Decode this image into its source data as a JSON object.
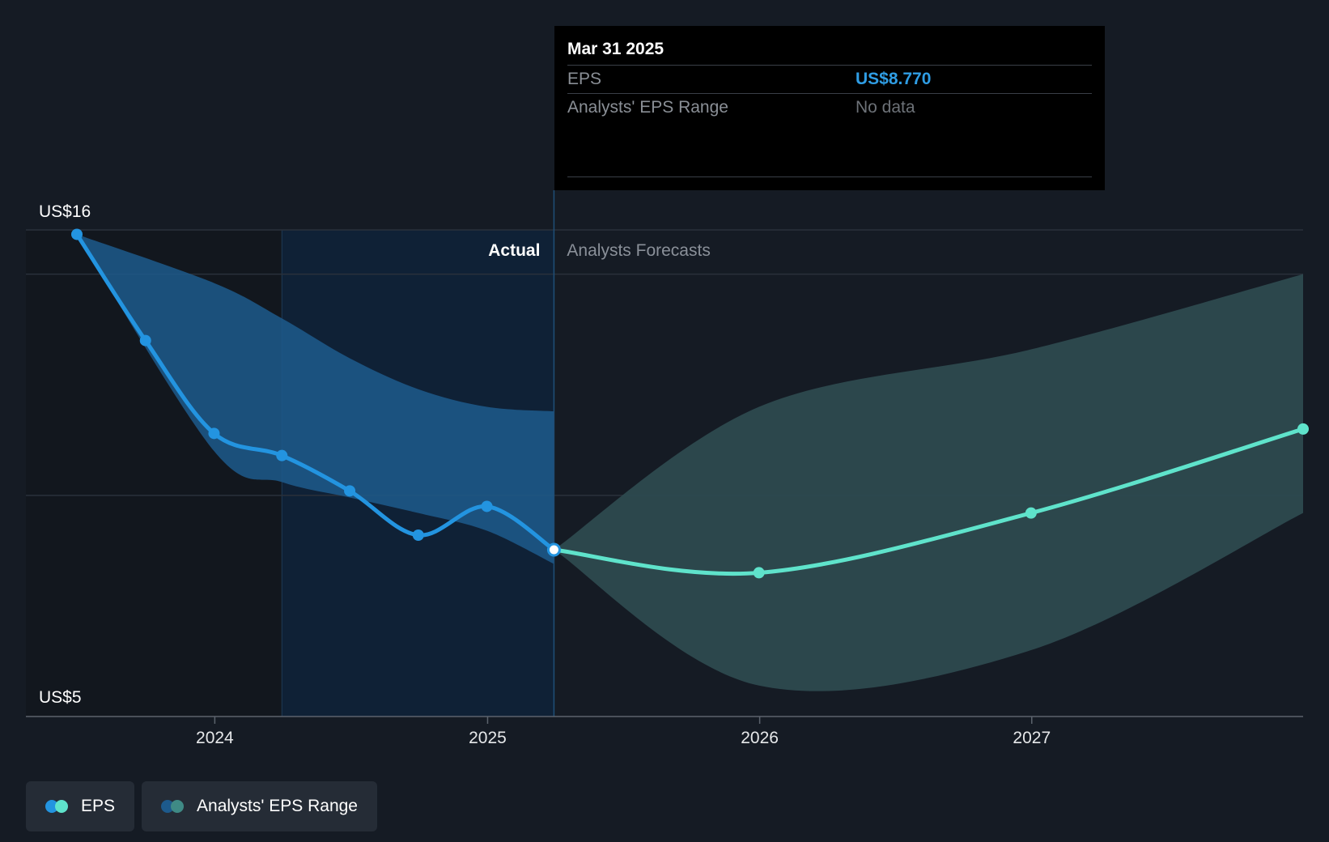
{
  "tooltip": {
    "date": "Mar 31 2025",
    "eps_label": "EPS",
    "eps_value": "US$8.770",
    "range_label": "Analysts' EPS Range",
    "range_value": "No data"
  },
  "legend": {
    "eps_label": "EPS",
    "range_label": "Analysts' EPS Range"
  },
  "colors": {
    "background": "#151b24",
    "eps_actual": "#2394e0",
    "eps_forecast": "#5fe3cb",
    "range_actual": "#1d5a8c",
    "range_forecast": "#2d4a4f"
  },
  "chart_data": {
    "type": "line",
    "y_tick_labels": [
      "US$16",
      "US$5"
    ],
    "ylim": [
      5,
      16
    ],
    "x_tick_labels": [
      "2024",
      "2025",
      "2026",
      "2027"
    ],
    "xlim": [
      "2023-06-30",
      "2027-12-31"
    ],
    "region_labels": {
      "actual": "Actual",
      "forecast": "Analysts Forecasts"
    },
    "highlight_start": "2024-03-31",
    "forecast_start": "2025-03-31",
    "series": [
      {
        "name": "EPS",
        "segment": "actual",
        "x": [
          "2023-06-30",
          "2023-09-30",
          "2023-12-31",
          "2024-03-31",
          "2024-06-30",
          "2024-09-30",
          "2024-12-31",
          "2025-03-31"
        ],
        "y": [
          15.9,
          13.5,
          11.4,
          10.9,
          10.1,
          9.1,
          9.75,
          8.77
        ]
      },
      {
        "name": "EPS",
        "segment": "forecast",
        "x": [
          "2025-03-31",
          "2025-12-31",
          "2026-12-31",
          "2027-12-31"
        ],
        "y": [
          8.77,
          8.25,
          9.6,
          11.5
        ]
      },
      {
        "name": "Analysts' EPS Range",
        "segment": "actual",
        "x": [
          "2023-06-30",
          "2023-12-31",
          "2024-03-31",
          "2024-06-30",
          "2024-09-30",
          "2024-12-31",
          "2025-03-31"
        ],
        "high": [
          15.9,
          14.8,
          14.0,
          13.1,
          12.4,
          12.0,
          11.9
        ],
        "low": [
          15.9,
          11.0,
          10.3,
          9.95,
          9.6,
          9.2,
          8.45
        ]
      },
      {
        "name": "Analysts' EPS Range",
        "segment": "forecast",
        "x": [
          "2025-03-31",
          "2025-12-31",
          "2026-12-31",
          "2027-12-31"
        ],
        "high": [
          8.77,
          12.0,
          13.3,
          15.0
        ],
        "low": [
          8.77,
          5.7,
          6.5,
          9.6
        ]
      }
    ]
  }
}
